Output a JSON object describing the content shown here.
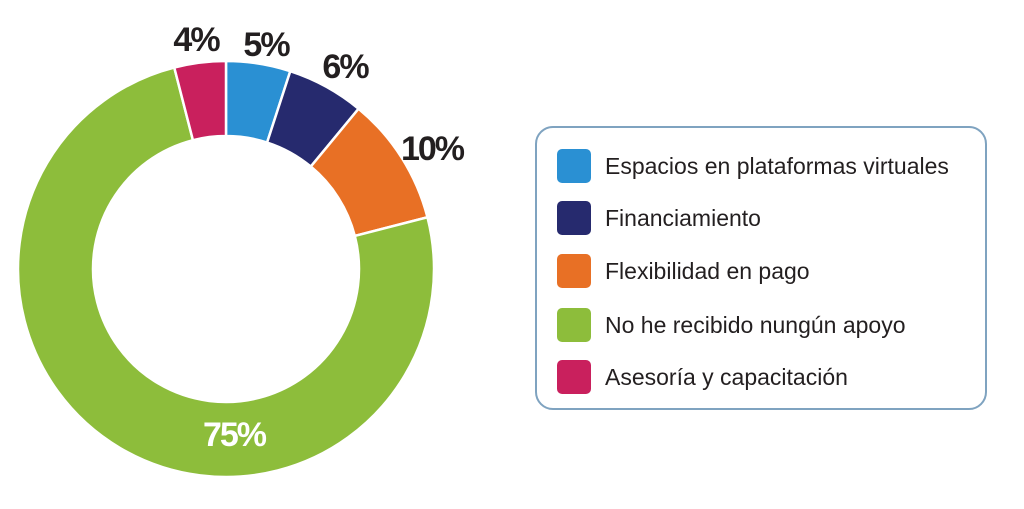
{
  "chart_data": {
    "type": "pie",
    "style": "donut",
    "slices": [
      {
        "label": "Espacios en plataformas virtuales",
        "value": 5,
        "value_label": "5%",
        "color": "#2a90d3"
      },
      {
        "label": "Financiamiento",
        "value": 6,
        "value_label": "6%",
        "color": "#262a6e"
      },
      {
        "label": "Flexibilidad en pago",
        "value": 10,
        "value_label": "10%",
        "color": "#e87025"
      },
      {
        "label": "No he recibido nungún apoyo",
        "value": 75,
        "value_label": "75%",
        "color": "#8dbd3b"
      },
      {
        "label": "Asesoría y capacitación",
        "value": 4,
        "value_label": "4%",
        "color": "#c9205d"
      }
    ],
    "legend_position": "right"
  }
}
